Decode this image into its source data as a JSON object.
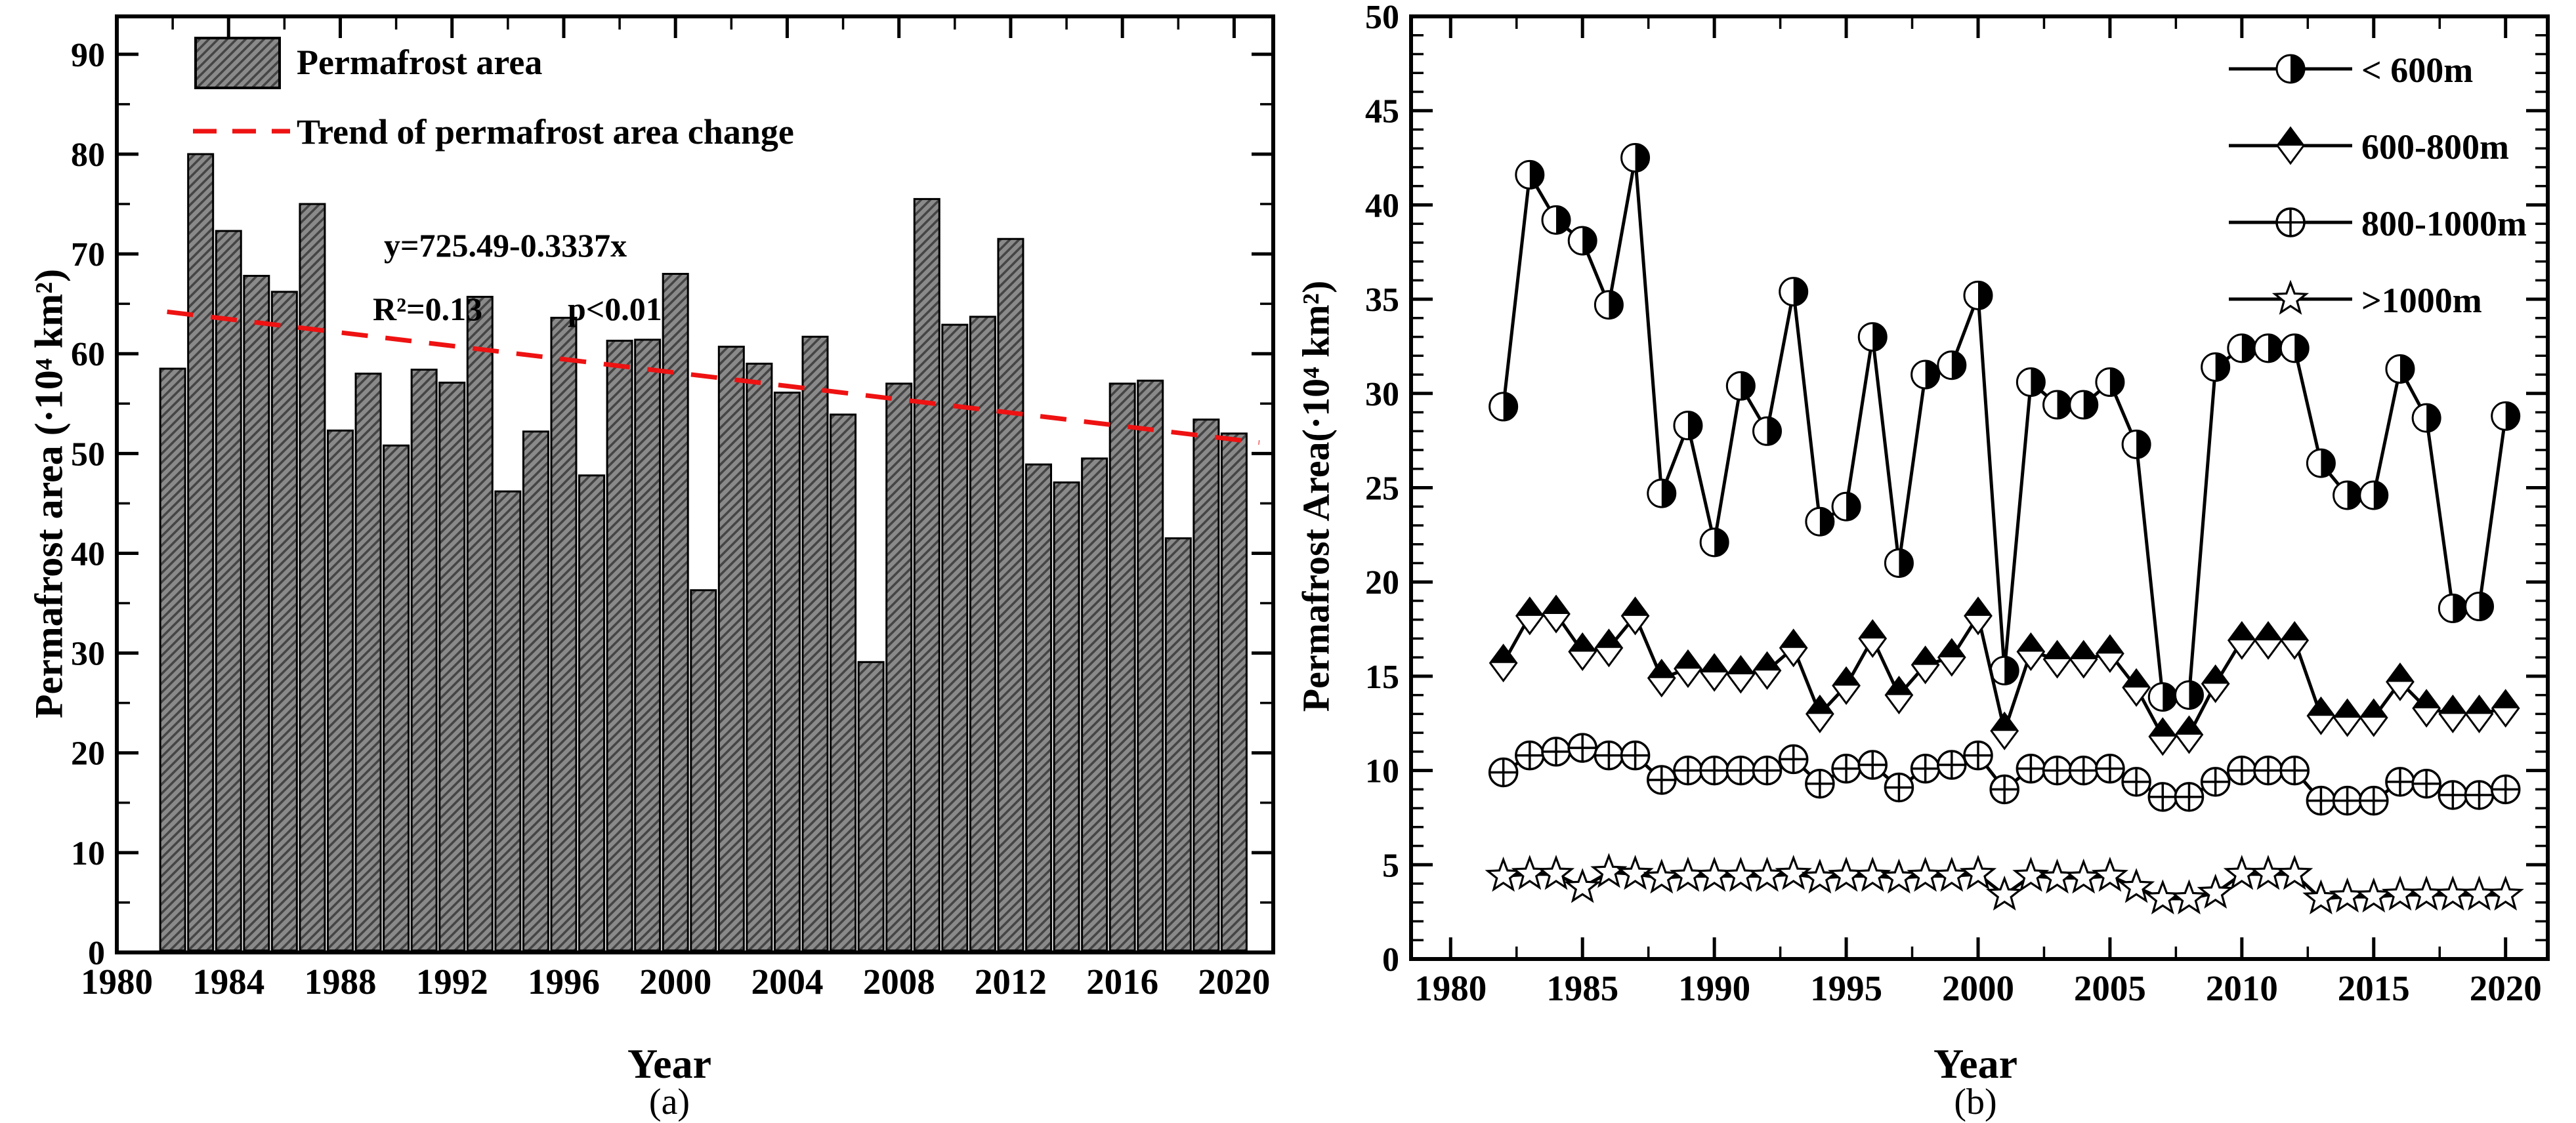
{
  "chart_data": [
    {
      "type": "bar",
      "panel": "a",
      "caption": "(a)",
      "xlabel": "Year",
      "ylabel": "Permafrost area (·10⁴ km²)",
      "x": [
        1982,
        1983,
        1984,
        1985,
        1986,
        1987,
        1988,
        1989,
        1990,
        1991,
        1992,
        1993,
        1994,
        1995,
        1996,
        1997,
        1998,
        1999,
        2000,
        2001,
        2002,
        2003,
        2004,
        2005,
        2006,
        2007,
        2008,
        2009,
        2010,
        2011,
        2012,
        2013,
        2014,
        2015,
        2016,
        2017,
        2018,
        2019,
        2020
      ],
      "values": [
        58.5,
        80.0,
        72.3,
        67.8,
        66.2,
        75.0,
        52.3,
        58.0,
        50.8,
        58.4,
        57.1,
        65.7,
        46.2,
        52.2,
        63.6,
        47.8,
        61.3,
        61.4,
        68.0,
        36.3,
        60.7,
        59.0,
        56.1,
        61.7,
        53.9,
        29.1,
        57.0,
        75.5,
        62.9,
        63.7,
        71.5,
        48.9,
        47.1,
        49.5,
        57.0,
        57.3,
        41.5,
        53.4,
        52.0
      ],
      "ylim": [
        0,
        93.8
      ],
      "xlim": [
        1980,
        2021.4
      ],
      "yticks": [
        0,
        10,
        20,
        30,
        40,
        50,
        60,
        70,
        80,
        90
      ],
      "yticks_minor_step": 5,
      "xticks": [
        1980,
        1984,
        1988,
        1992,
        1996,
        2000,
        2004,
        2008,
        2012,
        2016,
        2020
      ],
      "xticks_minor_step": 2,
      "legend": [
        {
          "label": "Permafrost area",
          "marker": "hatched-bar-swatch"
        },
        {
          "label": "Trend of permafrost area change",
          "marker": "red-dashed-line"
        }
      ],
      "annotation": {
        "equation": "y=725.49-0.3337x",
        "r_squared": "R²=0.13",
        "p_value": "p<0.01"
      },
      "trend": {
        "x_start": 1981.8,
        "value_start": 64.2,
        "x_end": 2020.9,
        "value_end": 51.1
      },
      "colors": {
        "bar_fill": "#8a8a8a",
        "bar_hatch": "#454545",
        "bar_edge": "#000000",
        "trend": "#ee1212",
        "axis": "#000000"
      }
    },
    {
      "type": "line",
      "panel": "b",
      "caption": "(b)",
      "xlabel": "Year",
      "ylabel": "Permafrost Area(·10⁴ km²)",
      "x": [
        1982,
        1983,
        1984,
        1985,
        1986,
        1987,
        1988,
        1989,
        1990,
        1991,
        1992,
        1993,
        1994,
        1995,
        1996,
        1997,
        1998,
        1999,
        2000,
        2001,
        2002,
        2003,
        2004,
        2005,
        2006,
        2007,
        2008,
        2009,
        2010,
        2011,
        2012,
        2013,
        2014,
        2015,
        2016,
        2017,
        2018,
        2019,
        2020
      ],
      "series": [
        {
          "name": "< 600m",
          "marker": "half-filled-circle",
          "values": [
            29.3,
            41.6,
            39.2,
            38.1,
            34.7,
            42.5,
            24.7,
            28.3,
            22.1,
            30.4,
            28.0,
            35.4,
            23.2,
            24.0,
            33.0,
            21.0,
            31.0,
            31.5,
            35.2,
            15.3,
            30.6,
            29.4,
            29.4,
            30.6,
            27.3,
            13.9,
            14.0,
            31.4,
            32.4,
            32.4,
            32.4,
            26.3,
            24.6,
            24.6,
            31.3,
            28.7,
            18.6,
            18.7,
            28.8
          ]
        },
        {
          "name": "600-800m",
          "marker": "half-filled-diamond",
          "values": [
            15.7,
            18.2,
            18.3,
            16.3,
            16.5,
            18.2,
            14.9,
            15.4,
            15.2,
            15.1,
            15.3,
            16.5,
            13.0,
            14.5,
            17.0,
            14.0,
            15.6,
            16.0,
            18.2,
            12.1,
            16.3,
            15.9,
            15.9,
            16.2,
            14.4,
            11.8,
            11.9,
            14.6,
            16.9,
            16.9,
            16.9,
            12.9,
            12.8,
            12.8,
            14.7,
            13.3,
            13.0,
            13.0,
            13.3
          ]
        },
        {
          "name": "800-1000m",
          "marker": "circle-plus",
          "values": [
            9.9,
            10.8,
            11.0,
            11.2,
            10.8,
            10.8,
            9.5,
            10.0,
            10.0,
            10.0,
            10.0,
            10.6,
            9.3,
            10.1,
            10.3,
            9.1,
            10.1,
            10.3,
            10.8,
            9.0,
            10.1,
            10.0,
            10.0,
            10.1,
            9.4,
            8.6,
            8.6,
            9.4,
            10.0,
            10.0,
            10.0,
            8.4,
            8.4,
            8.4,
            9.4,
            9.3,
            8.7,
            8.7,
            9.0
          ]
        },
        {
          "name": ">1000m",
          "marker": "open-star",
          "values": [
            4.4,
            4.5,
            4.5,
            3.8,
            4.6,
            4.5,
            4.3,
            4.4,
            4.4,
            4.4,
            4.4,
            4.5,
            4.3,
            4.4,
            4.4,
            4.3,
            4.4,
            4.4,
            4.5,
            3.4,
            4.4,
            4.3,
            4.3,
            4.4,
            3.8,
            3.2,
            3.2,
            3.5,
            4.5,
            4.5,
            4.5,
            3.2,
            3.3,
            3.3,
            3.4,
            3.4,
            3.4,
            3.4,
            3.4
          ]
        }
      ],
      "ylim": [
        0,
        50
      ],
      "xlim": [
        1978.5,
        2021.6
      ],
      "yticks": [
        0,
        5,
        10,
        15,
        20,
        25,
        30,
        35,
        40,
        45,
        50
      ],
      "yticks_minor_step": 1,
      "xticks": [
        1980,
        1985,
        1990,
        1995,
        2000,
        2005,
        2010,
        2015,
        2020
      ],
      "xticks_minor_step": 2.5,
      "legend_position": "top-right",
      "colors": {
        "line": "#000000",
        "axis": "#000000"
      }
    }
  ]
}
